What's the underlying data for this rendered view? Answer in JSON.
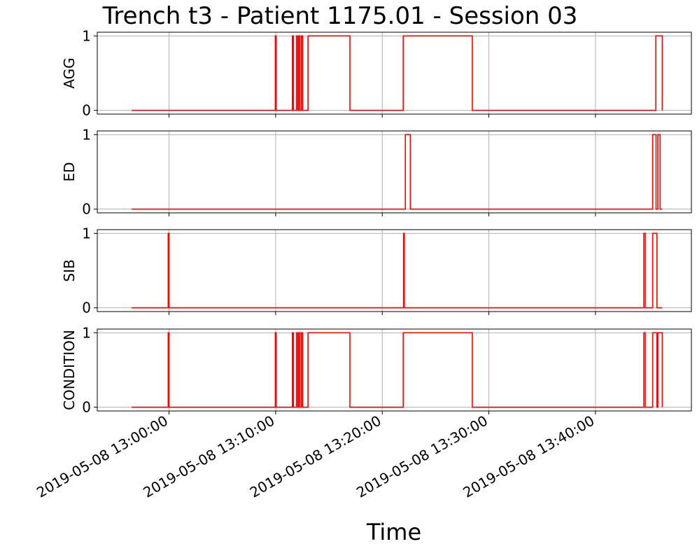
{
  "chart_data": {
    "type": "line",
    "title": "Trench t3 - Patient 1175.01 - Session 03",
    "xlabel": "Time",
    "x_ticks": [
      "2019-05-08 13:00:00",
      "2019-05-08 13:10:00",
      "2019-05-08 13:20:00",
      "2019-05-08 13:30:00",
      "2019-05-08 13:40:00"
    ],
    "xlim": [
      "2019-05-08 12:53:16",
      "2019-05-08 13:49:00"
    ],
    "ylim": [
      -0.05,
      1.05
    ],
    "y_ticks": [
      "0",
      "1"
    ],
    "grid": true,
    "line_color": "#ff0000",
    "series": [
      {
        "name": "AGG",
        "points": [
          [
            "2019-05-08 12:56:30",
            0
          ],
          [
            "2019-05-08 13:09:58",
            0
          ],
          [
            "2019-05-08 13:09:58",
            1
          ],
          [
            "2019-05-08 13:10:03",
            1
          ],
          [
            "2019-05-08 13:10:03",
            0
          ],
          [
            "2019-05-08 13:11:34",
            0
          ],
          [
            "2019-05-08 13:11:34",
            1
          ],
          [
            "2019-05-08 13:11:40",
            1
          ],
          [
            "2019-05-08 13:11:40",
            0
          ],
          [
            "2019-05-08 13:11:57",
            0
          ],
          [
            "2019-05-08 13:11:57",
            1
          ],
          [
            "2019-05-08 13:12:04",
            1
          ],
          [
            "2019-05-08 13:12:04",
            0
          ],
          [
            "2019-05-08 13:12:09",
            0
          ],
          [
            "2019-05-08 13:12:09",
            1
          ],
          [
            "2019-05-08 13:12:16",
            1
          ],
          [
            "2019-05-08 13:12:16",
            0
          ],
          [
            "2019-05-08 13:12:25",
            0
          ],
          [
            "2019-05-08 13:12:25",
            1
          ],
          [
            "2019-05-08 13:12:32",
            1
          ],
          [
            "2019-05-08 13:12:32",
            0
          ],
          [
            "2019-05-08 13:13:02",
            0
          ],
          [
            "2019-05-08 13:13:02",
            1
          ],
          [
            "2019-05-08 13:16:58",
            1
          ],
          [
            "2019-05-08 13:16:58",
            0
          ],
          [
            "2019-05-08 13:21:58",
            0
          ],
          [
            "2019-05-08 13:21:58",
            1
          ],
          [
            "2019-05-08 13:28:27",
            1
          ],
          [
            "2019-05-08 13:28:27",
            0
          ],
          [
            "2019-05-08 13:45:40",
            0
          ],
          [
            "2019-05-08 13:45:40",
            1
          ],
          [
            "2019-05-08 13:46:16",
            1
          ],
          [
            "2019-05-08 13:46:16",
            0
          ]
        ]
      },
      {
        "name": "ED",
        "points": [
          [
            "2019-05-08 12:56:30",
            0
          ],
          [
            "2019-05-08 13:22:10",
            0
          ],
          [
            "2019-05-08 13:22:10",
            1
          ],
          [
            "2019-05-08 13:22:38",
            1
          ],
          [
            "2019-05-08 13:22:38",
            0
          ],
          [
            "2019-05-08 13:45:22",
            0
          ],
          [
            "2019-05-08 13:45:22",
            1
          ],
          [
            "2019-05-08 13:45:41",
            1
          ],
          [
            "2019-05-08 13:45:41",
            0
          ],
          [
            "2019-05-08 13:45:51",
            0
          ],
          [
            "2019-05-08 13:45:51",
            1
          ],
          [
            "2019-05-08 13:46:04",
            1
          ],
          [
            "2019-05-08 13:46:04",
            0
          ],
          [
            "2019-05-08 13:46:16",
            0
          ]
        ]
      },
      {
        "name": "SIB",
        "points": [
          [
            "2019-05-08 12:56:30",
            0
          ],
          [
            "2019-05-08 12:59:55",
            0
          ],
          [
            "2019-05-08 12:59:55",
            1
          ],
          [
            "2019-05-08 13:00:00",
            1
          ],
          [
            "2019-05-08 13:00:00",
            0
          ],
          [
            "2019-05-08 13:22:00",
            0
          ],
          [
            "2019-05-08 13:22:00",
            1
          ],
          [
            "2019-05-08 13:22:04",
            1
          ],
          [
            "2019-05-08 13:22:04",
            0
          ],
          [
            "2019-05-08 13:44:32",
            0
          ],
          [
            "2019-05-08 13:44:32",
            1
          ],
          [
            "2019-05-08 13:44:40",
            1
          ],
          [
            "2019-05-08 13:44:40",
            0
          ],
          [
            "2019-05-08 13:45:22",
            0
          ],
          [
            "2019-05-08 13:45:22",
            1
          ],
          [
            "2019-05-08 13:45:46",
            1
          ],
          [
            "2019-05-08 13:45:46",
            0
          ],
          [
            "2019-05-08 13:46:16",
            0
          ]
        ]
      },
      {
        "name": "CONDITION",
        "points": [
          [
            "2019-05-08 12:56:30",
            0
          ],
          [
            "2019-05-08 12:59:55",
            0
          ],
          [
            "2019-05-08 12:59:55",
            1
          ],
          [
            "2019-05-08 13:00:00",
            1
          ],
          [
            "2019-05-08 13:00:00",
            0
          ],
          [
            "2019-05-08 13:09:58",
            0
          ],
          [
            "2019-05-08 13:09:58",
            1
          ],
          [
            "2019-05-08 13:10:03",
            1
          ],
          [
            "2019-05-08 13:10:03",
            0
          ],
          [
            "2019-05-08 13:11:34",
            0
          ],
          [
            "2019-05-08 13:11:34",
            1
          ],
          [
            "2019-05-08 13:11:40",
            1
          ],
          [
            "2019-05-08 13:11:40",
            0
          ],
          [
            "2019-05-08 13:11:57",
            0
          ],
          [
            "2019-05-08 13:11:57",
            1
          ],
          [
            "2019-05-08 13:12:04",
            1
          ],
          [
            "2019-05-08 13:12:04",
            0
          ],
          [
            "2019-05-08 13:12:09",
            0
          ],
          [
            "2019-05-08 13:12:09",
            1
          ],
          [
            "2019-05-08 13:12:16",
            1
          ],
          [
            "2019-05-08 13:12:16",
            0
          ],
          [
            "2019-05-08 13:12:25",
            0
          ],
          [
            "2019-05-08 13:12:25",
            1
          ],
          [
            "2019-05-08 13:12:32",
            1
          ],
          [
            "2019-05-08 13:12:32",
            0
          ],
          [
            "2019-05-08 13:13:02",
            0
          ],
          [
            "2019-05-08 13:13:02",
            1
          ],
          [
            "2019-05-08 13:16:58",
            1
          ],
          [
            "2019-05-08 13:16:58",
            0
          ],
          [
            "2019-05-08 13:21:58",
            0
          ],
          [
            "2019-05-08 13:21:58",
            1
          ],
          [
            "2019-05-08 13:28:27",
            1
          ],
          [
            "2019-05-08 13:28:27",
            0
          ],
          [
            "2019-05-08 13:44:32",
            0
          ],
          [
            "2019-05-08 13:44:32",
            1
          ],
          [
            "2019-05-08 13:44:40",
            1
          ],
          [
            "2019-05-08 13:44:40",
            0
          ],
          [
            "2019-05-08 13:45:22",
            0
          ],
          [
            "2019-05-08 13:45:22",
            1
          ],
          [
            "2019-05-08 13:45:46",
            1
          ],
          [
            "2019-05-08 13:45:46",
            0
          ],
          [
            "2019-05-08 13:45:51",
            0
          ],
          [
            "2019-05-08 13:45:51",
            1
          ],
          [
            "2019-05-08 13:46:16",
            1
          ],
          [
            "2019-05-08 13:46:16",
            0
          ]
        ]
      }
    ]
  }
}
